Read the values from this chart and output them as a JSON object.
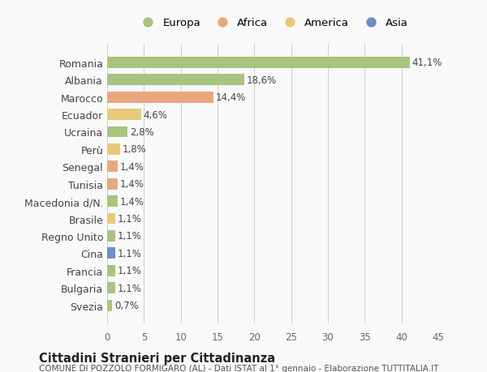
{
  "countries": [
    "Romania",
    "Albania",
    "Marocco",
    "Ecuador",
    "Ucraina",
    "Perù",
    "Senegal",
    "Tunisia",
    "Macedonia d/N.",
    "Brasile",
    "Regno Unito",
    "Cina",
    "Francia",
    "Bulgaria",
    "Svezia"
  ],
  "values": [
    41.1,
    18.6,
    14.4,
    4.6,
    2.8,
    1.8,
    1.4,
    1.4,
    1.4,
    1.1,
    1.1,
    1.1,
    1.1,
    1.1,
    0.7
  ],
  "labels": [
    "41,1%",
    "18,6%",
    "14,4%",
    "4,6%",
    "2,8%",
    "1,8%",
    "1,4%",
    "1,4%",
    "1,4%",
    "1,1%",
    "1,1%",
    "1,1%",
    "1,1%",
    "1,1%",
    "0,7%"
  ],
  "colors": [
    "#a8c47e",
    "#a8c47e",
    "#e8a87c",
    "#e8c87a",
    "#a8c47e",
    "#e8c87a",
    "#e8a87c",
    "#e8a87c",
    "#a8c47e",
    "#e8c87a",
    "#a8c47e",
    "#6a8fcb",
    "#a8c47e",
    "#a8c47e",
    "#a8c47e"
  ],
  "continent_labels": [
    "Europa",
    "Africa",
    "America",
    "Asia"
  ],
  "continent_colors": [
    "#a8c47e",
    "#e8a87c",
    "#e8c87a",
    "#6a8fcb"
  ],
  "title": "Cittadini Stranieri per Cittadinanza",
  "subtitle": "COMUNE DI POZZOLO FORMIGARO (AL) - Dati ISTAT al 1° gennaio - Elaborazione TUTTITALIA.IT",
  "xlim": [
    0,
    45
  ],
  "xticks": [
    0,
    5,
    10,
    15,
    20,
    25,
    30,
    35,
    40,
    45
  ],
  "background_color": "#f9f9f9",
  "grid_color": "#cccccc"
}
